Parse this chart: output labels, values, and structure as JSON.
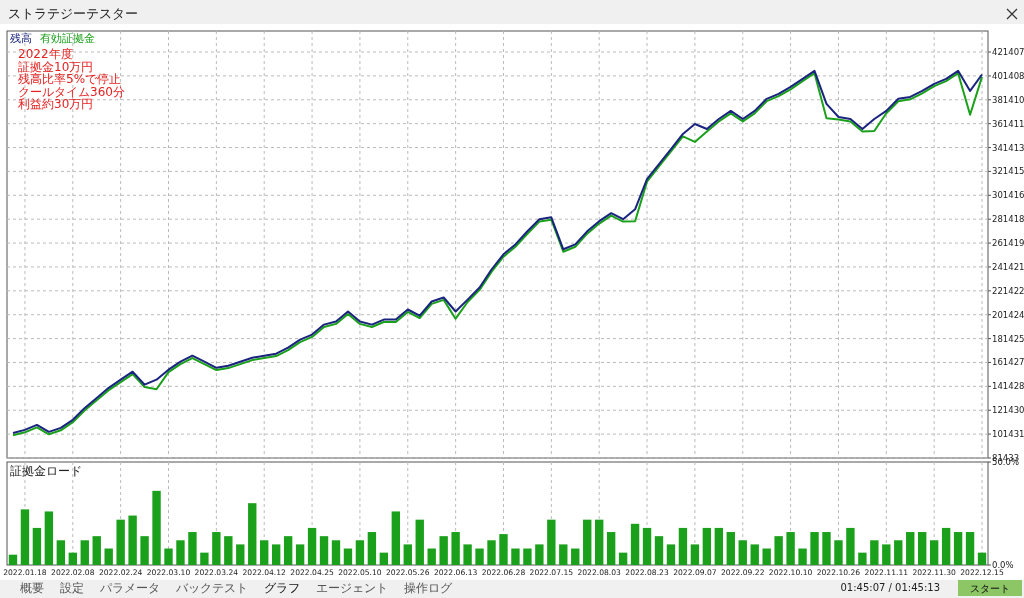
{
  "chart_data": [
    {
      "type": "line",
      "title": "ストラテジーテスター",
      "categories": [
        null,
        "2022.01.18",
        null,
        null,
        null,
        "2022.02.08",
        null,
        null,
        null,
        "2022.02.24",
        null,
        null,
        null,
        "2022.03.10",
        null,
        null,
        null,
        "2022.03.24",
        null,
        null,
        null,
        "2022.04.12",
        null,
        null,
        null,
        "2022.04.25",
        null,
        null,
        null,
        "2022.05.10",
        null,
        null,
        null,
        "2022.05.26",
        null,
        null,
        null,
        "2022.06.13",
        null,
        null,
        null,
        "2022.06.28",
        null,
        null,
        null,
        "2022.07.15",
        null,
        null,
        null,
        "2022.08.03",
        null,
        null,
        null,
        "2022.08.23",
        null,
        null,
        null,
        "2022.09.07",
        null,
        null,
        null,
        "2022.09.22",
        null,
        null,
        null,
        "2022.10.10",
        null,
        null,
        null,
        "2022.10.26",
        null,
        null,
        null,
        "2022.11.11",
        null,
        null,
        null,
        "2022.11.30",
        null,
        null,
        null,
        "2022.12.15"
      ],
      "series": [
        {
          "name": "有効証拠金",
          "color": "#1aa01a",
          "values": [
            100400,
            102950,
            107150,
            101300,
            104600,
            111400,
            121400,
            129800,
            138200,
            145000,
            151700,
            140800,
            139000,
            153400,
            160100,
            165100,
            160100,
            155000,
            156700,
            160100,
            163400,
            165100,
            166800,
            171800,
            178500,
            182800,
            191100,
            193700,
            202100,
            193700,
            191100,
            195300,
            195300,
            203800,
            198700,
            210500,
            213800,
            198100,
            212100,
            222200,
            237300,
            250000,
            258300,
            269300,
            279400,
            281000,
            254200,
            258300,
            269300,
            277700,
            284400,
            279400,
            279700,
            312900,
            325500,
            338100,
            350800,
            346100,
            354900,
            363300,
            370100,
            363300,
            370100,
            380200,
            384400,
            390200,
            397000,
            403700,
            366000,
            365000,
            363300,
            354900,
            355300,
            370100,
            380200,
            381800,
            386800,
            392800,
            397000,
            403700,
            368800,
            400600
          ]
        },
        {
          "name": "残高",
          "color": "#1a237e",
          "values": [
            102400,
            104950,
            109150,
            103300,
            106600,
            113400,
            123400,
            131800,
            140200,
            147000,
            153700,
            142800,
            147000,
            155400,
            162100,
            167100,
            162100,
            157000,
            158700,
            162100,
            165400,
            167100,
            168800,
            173800,
            180500,
            184800,
            193100,
            195700,
            204100,
            195700,
            193100,
            197300,
            197300,
            205800,
            200700,
            212500,
            215800,
            204100,
            214100,
            224200,
            239300,
            252000,
            260300,
            271300,
            281400,
            283000,
            256200,
            260300,
            271300,
            279700,
            286400,
            281400,
            289700,
            314900,
            327500,
            340100,
            352800,
            361100,
            356900,
            365300,
            372100,
            365300,
            372100,
            382200,
            386400,
            392200,
            399000,
            405700,
            378000,
            367000,
            365300,
            356900,
            365300,
            372100,
            382200,
            383800,
            388800,
            394800,
            399000,
            405700,
            388800,
            402600
          ]
        }
      ],
      "ylim": [
        81433,
        439000
      ],
      "yticks": [
        81433,
        101431,
        121430,
        141428,
        161427,
        181425,
        201424,
        221422,
        241421,
        261419,
        281418,
        301416,
        321415,
        341413,
        361411,
        381410,
        401408,
        421407
      ],
      "tick_labels": "y",
      "grid": true,
      "legend": "top left",
      "annotations": [
        "2022年度",
        "証拠金10万円",
        "残高比率5%で停止",
        "クールタイム360分",
        "利益約30万円"
      ]
    },
    {
      "type": "bar",
      "title": "証拠金ロード",
      "categories": [
        null,
        "2022.01.18",
        null,
        null,
        null,
        "2022.02.08",
        null,
        null,
        null,
        "2022.02.24",
        null,
        null,
        null,
        "2022.03.10",
        null,
        null,
        null,
        "2022.03.24",
        null,
        null,
        null,
        "2022.04.12",
        null,
        null,
        null,
        "2022.04.25",
        null,
        null,
        null,
        "2022.05.10",
        null,
        null,
        null,
        "2022.05.26",
        null,
        null,
        null,
        "2022.06.13",
        null,
        null,
        null,
        "2022.06.28",
        null,
        null,
        null,
        "2022.07.15",
        null,
        null,
        null,
        "2022.08.03",
        null,
        null,
        null,
        "2022.08.23",
        null,
        null,
        null,
        "2022.09.07",
        null,
        null,
        null,
        "2022.09.22",
        null,
        null,
        null,
        "2022.10.10",
        null,
        null,
        null,
        "2022.10.26",
        null,
        null,
        null,
        "2022.11.11",
        null,
        null,
        null,
        "2022.11.30",
        null,
        null,
        null,
        "2022.12.15"
      ],
      "color": "#1aa01a",
      "values": [
        5,
        27,
        18,
        26,
        12,
        6,
        12,
        14,
        8,
        22,
        24,
        14,
        36,
        8,
        12,
        16,
        6,
        16,
        14,
        10,
        30,
        12,
        10,
        14,
        10,
        18,
        14,
        12,
        8,
        12,
        16,
        6,
        26,
        10,
        22,
        8,
        14,
        16,
        10,
        8,
        12,
        15,
        8,
        8,
        10,
        22,
        10,
        8,
        22,
        22,
        16,
        6,
        20,
        18,
        14,
        10,
        18,
        10,
        18,
        18,
        16,
        12,
        10,
        8,
        14,
        16,
        8,
        16,
        16,
        12,
        18,
        6,
        12,
        10,
        12,
        16,
        16,
        12,
        18,
        16,
        16,
        6
      ],
      "ylim": [
        0,
        50
      ],
      "yticks": [
        {
          "value": 0,
          "label": "0.0%"
        },
        {
          "value": 50,
          "label": "50.0%"
        }
      ],
      "grid": "x",
      "annotations": [
        "概要",
        "設定",
        "パラメータ",
        "バックテスト",
        "グラフ",
        "エージェント",
        "操作ログ",
        "01:45:07 / 01:45:13",
        "スタート"
      ]
    }
  ]
}
